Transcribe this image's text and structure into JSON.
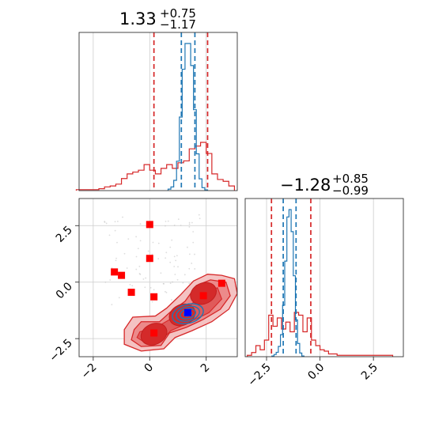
{
  "chart_data": [
    {
      "type": "histogram",
      "panel": "top-left marginal (parameter 1)",
      "title_main": "1.33",
      "title_sup": "+0.75",
      "title_sub": "−1.17",
      "xlim": [
        -2.5,
        3.1
      ],
      "series": [
        {
          "color": "#d62728",
          "x": [
            -2.5,
            -2.3,
            -2.1,
            -1.9,
            -1.7,
            -1.5,
            -1.3,
            -1.1,
            -0.9,
            -0.7,
            -0.5,
            -0.3,
            -0.1,
            0.1,
            0.3,
            0.5,
            0.7,
            0.9,
            1.1,
            1.3,
            1.5,
            1.7,
            1.9,
            2.1,
            2.3,
            2.5,
            2.7,
            2.9
          ],
          "values": [
            1,
            1,
            1,
            1,
            2,
            4,
            5,
            7,
            13,
            18,
            20,
            22,
            28,
            22,
            18,
            24,
            28,
            24,
            30,
            32,
            45,
            48,
            52,
            40,
            18,
            12,
            10,
            5
          ],
          "quantile_lines": [
            0.15,
            2.05
          ]
        },
        {
          "color": "#1f77b4",
          "x": [
            0.7,
            0.8,
            0.9,
            1.0,
            1.1,
            1.2,
            1.3,
            1.4,
            1.5,
            1.6,
            1.7,
            1.8,
            1.9,
            2.0
          ],
          "values": [
            2,
            5,
            14,
            40,
            100,
            165,
            200,
            200,
            170,
            110,
            50,
            16,
            4,
            1
          ],
          "quantile_lines": [
            1.12,
            1.6
          ]
        }
      ]
    },
    {
      "type": "contour",
      "panel": "bottom-left joint (parameter 1 vs parameter 2)",
      "xlim": [
        -2.5,
        3.1
      ],
      "ylim": [
        -3.3,
        3.7
      ],
      "xticks": [
        -2,
        0,
        2
      ],
      "xtick_labels": [
        "−2",
        "0",
        "2"
      ],
      "yticks": [
        2.5,
        0.0,
        -2.5
      ],
      "ytick_labels": [
        "2.5",
        "0.0",
        "−2.5"
      ],
      "grid": true,
      "red_points": [
        [
          0.0,
          2.55
        ],
        [
          0.0,
          1.05
        ],
        [
          -1.25,
          0.45
        ],
        [
          -1.0,
          0.3
        ],
        [
          -0.65,
          -0.45
        ],
        [
          0.15,
          -0.65
        ],
        [
          1.9,
          -0.6
        ],
        [
          2.55,
          -0.05
        ],
        [
          0.15,
          -2.25
        ]
      ],
      "blue_point": [
        1.35,
        -1.35
      ],
      "red_density_centers": [
        [
          0.15,
          -2.3
        ],
        [
          1.15,
          -1.45
        ],
        [
          1.9,
          -0.5
        ]
      ],
      "blue_density_center": [
        1.35,
        -1.4
      ]
    },
    {
      "type": "histogram",
      "panel": "bottom-right marginal (parameter 2)",
      "title_main": "−1.28",
      "title_sup": "+0.85",
      "title_sub": "−0.99",
      "xlim": [
        -3.5,
        3.9
      ],
      "xticks": [
        -2.5,
        0.0,
        2.5
      ],
      "xtick_labels": [
        "−2.5",
        "0.0",
        "2.5"
      ],
      "series": [
        {
          "color": "#d62728",
          "x": [
            -3.3,
            -3.1,
            -2.9,
            -2.7,
            -2.5,
            -2.3,
            -2.1,
            -1.9,
            -1.7,
            -1.5,
            -1.3,
            -1.1,
            -0.9,
            -0.7,
            -0.5,
            -0.3,
            -0.1,
            0.1,
            0.3,
            0.5,
            0.7,
            0.9,
            2.1,
            3.3
          ],
          "values": [
            1,
            3,
            8,
            5,
            12,
            30,
            22,
            28,
            20,
            25,
            18,
            32,
            30,
            18,
            28,
            12,
            8,
            5,
            4,
            2,
            2,
            1,
            1,
            1
          ],
          "quantile_lines": [
            -2.27,
            -0.43
          ]
        },
        {
          "color": "#1f77b4",
          "x": [
            -2.2,
            -2.1,
            -2.0,
            -1.9,
            -1.8,
            -1.7,
            -1.6,
            -1.5,
            -1.4,
            -1.3,
            -1.2,
            -1.1,
            -1.0,
            -0.9,
            -0.8
          ],
          "values": [
            1,
            3,
            6,
            14,
            30,
            70,
            130,
            190,
            200,
            170,
            110,
            50,
            18,
            5,
            1
          ],
          "quantile_lines": [
            -1.72,
            -1.12
          ]
        }
      ]
    }
  ]
}
